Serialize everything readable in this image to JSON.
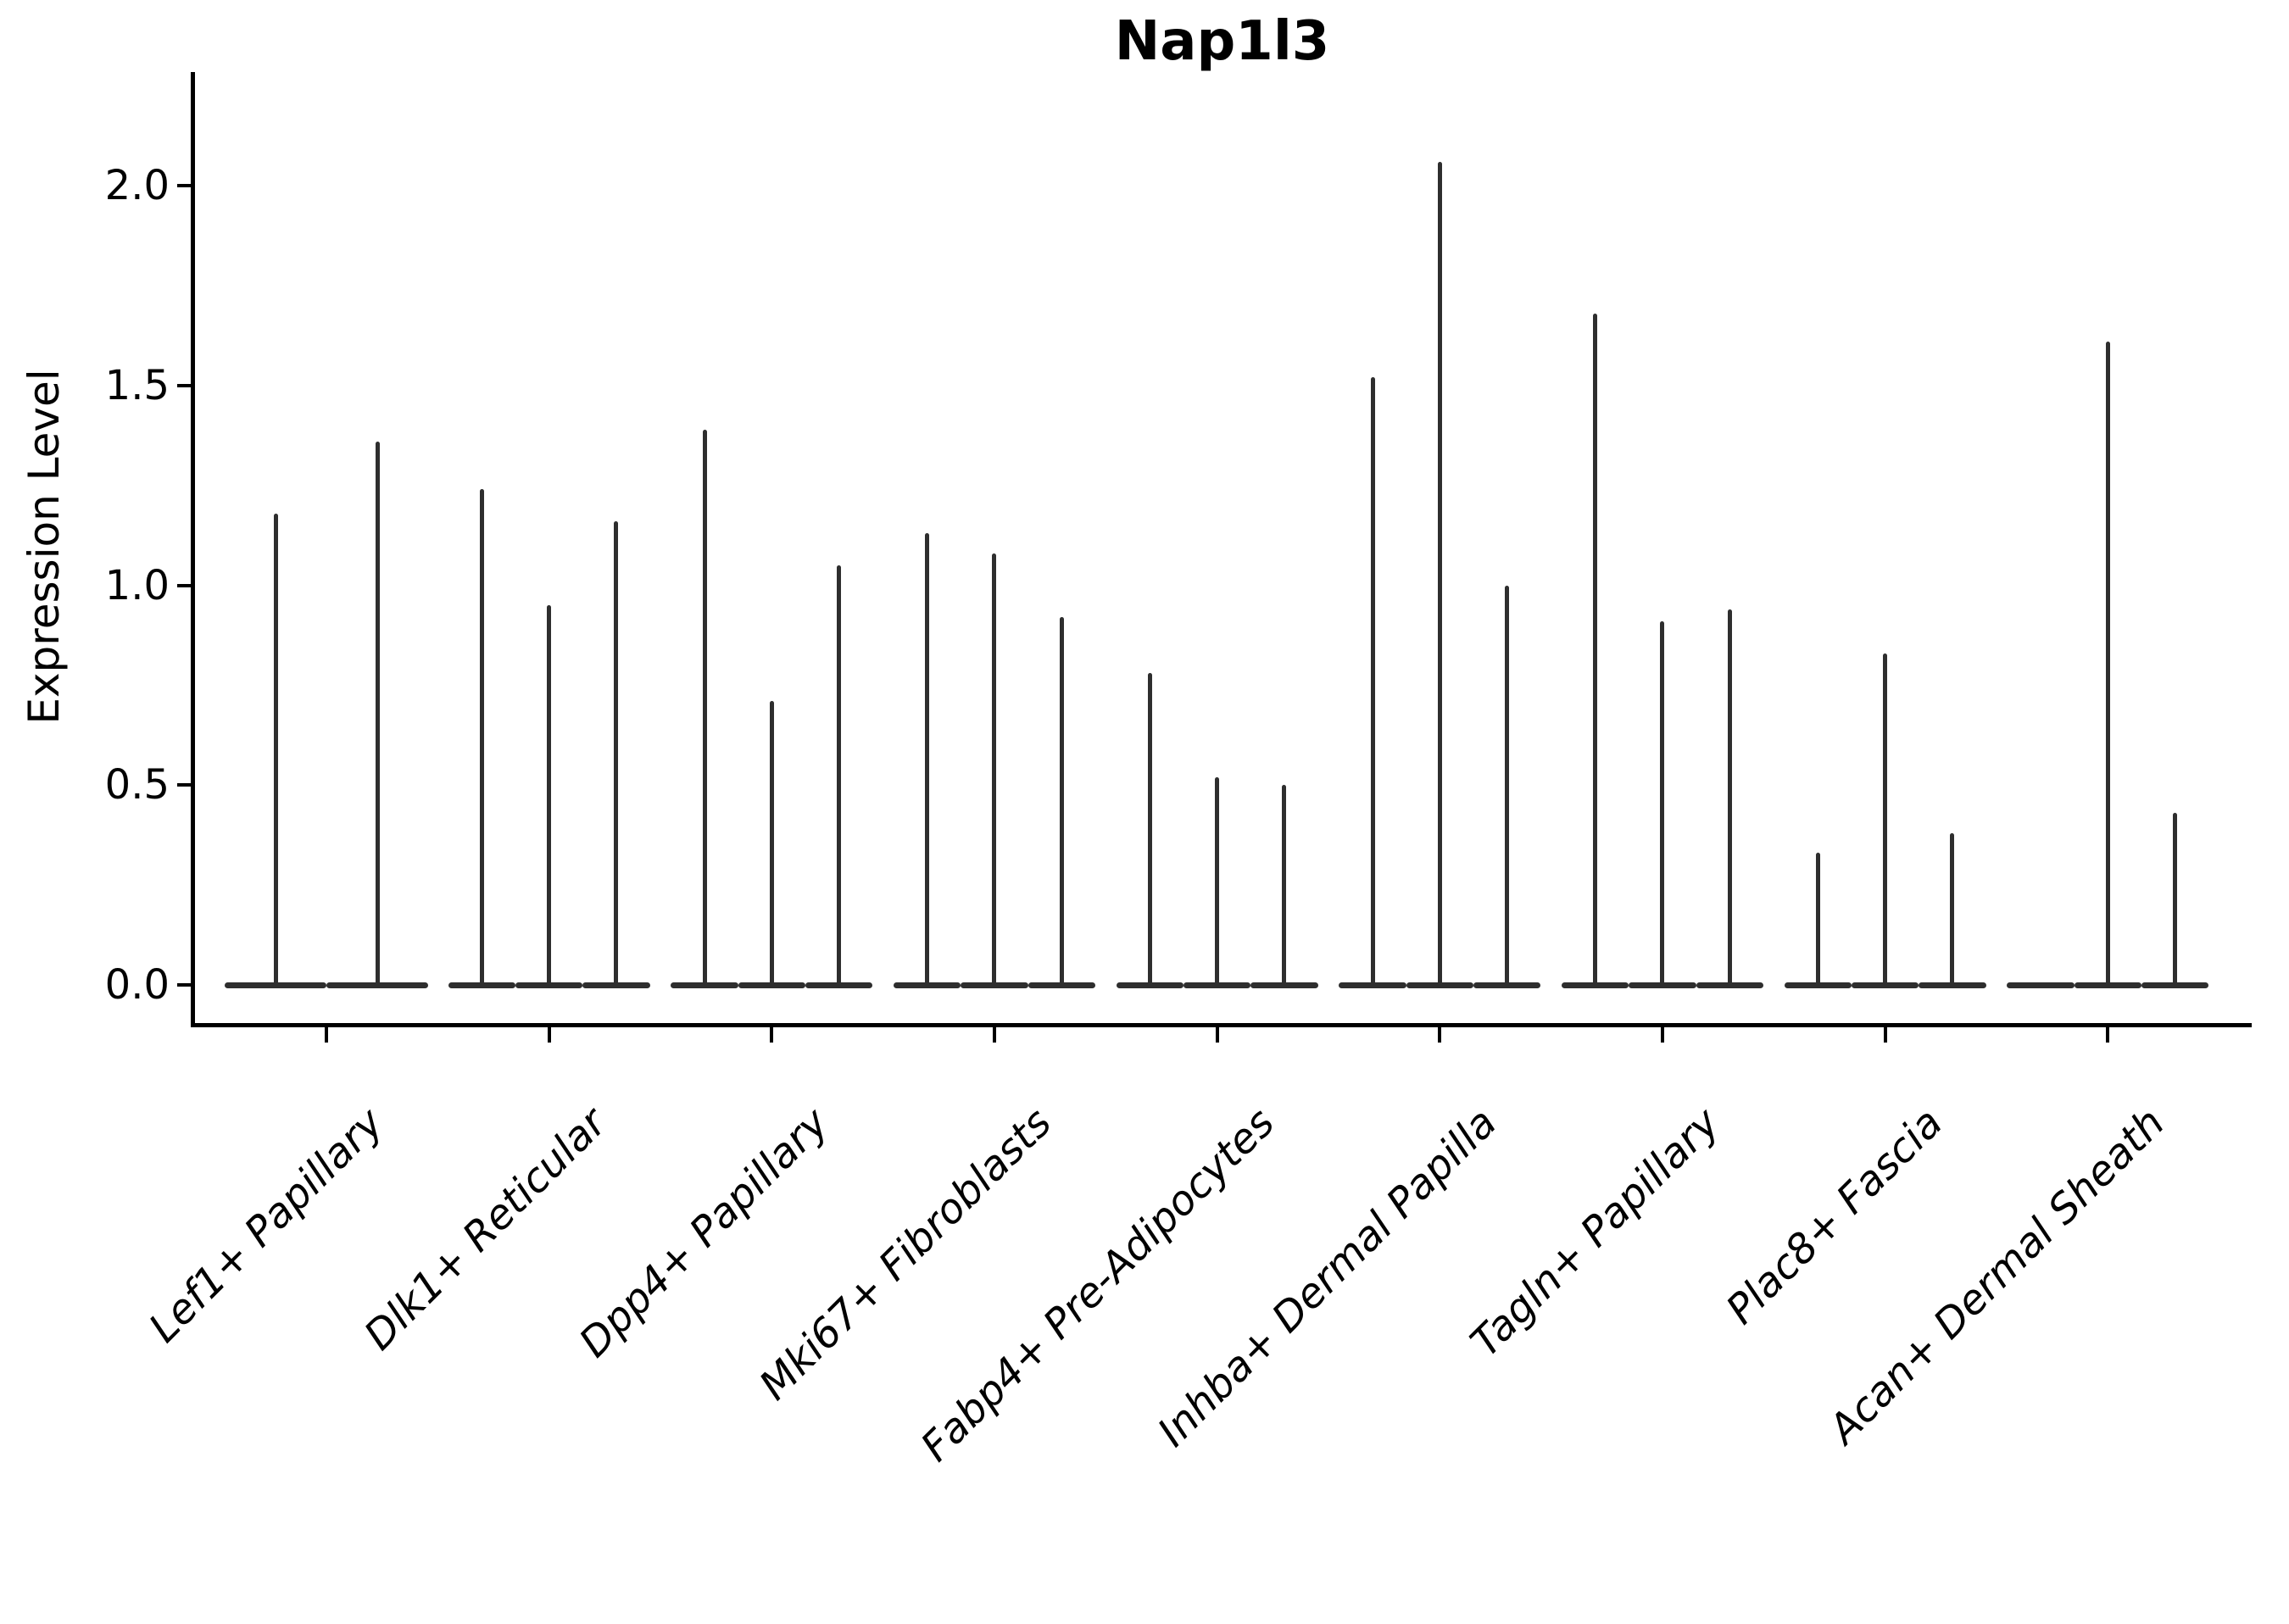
{
  "title": "Nap1l3",
  "chart_data": {
    "type": "violin",
    "title": "Nap1l3",
    "xlabel": "",
    "ylabel": "Expression Level",
    "ylim": [
      -0.1,
      2.28
    ],
    "grid": false,
    "legend": "none",
    "style": "collapsed violins: wide flat body at 0 expression with a thin spike reaching the max expression value",
    "violin_color": "#2e2e2e",
    "axis_color": "#000000",
    "yticks": [
      {
        "value": 0.0,
        "label": "0.0"
      },
      {
        "value": 0.5,
        "label": "0.5"
      },
      {
        "value": 1.0,
        "label": "1.0"
      },
      {
        "value": 1.5,
        "label": "1.5"
      },
      {
        "value": 2.0,
        "label": "2.0"
      }
    ],
    "categories": [
      "Lef1+ Papillary",
      "Dlk1+ Reticular",
      "Dpp4+ Papillary",
      "Mki67+ Fibroblasts",
      "Fabp4+ Pre-Adipocytes",
      "Inhba+ Dermal Papilla",
      "Tagln+ Papillary",
      "Plac8+ Fascia",
      "Acan+ Dermal Sheath"
    ],
    "groups": [
      {
        "label": "Lef1+ Papillary",
        "violins": [
          {
            "dx": -60,
            "width": 120,
            "max": 1.18
          },
          {
            "dx": 60,
            "width": 120,
            "max": 1.36
          }
        ]
      },
      {
        "label": "Dlk1+ Reticular",
        "violins": [
          {
            "dx": -79.3,
            "width": 79.3,
            "max": 1.24
          },
          {
            "dx": 0,
            "width": 79.3,
            "max": 0.95
          },
          {
            "dx": 79.3,
            "width": 79.3,
            "max": 1.16
          }
        ]
      },
      {
        "label": "Dpp4+ Papillary",
        "violins": [
          {
            "dx": -79.3,
            "width": 79.3,
            "max": 1.39
          },
          {
            "dx": 0,
            "width": 79.3,
            "max": 0.71
          },
          {
            "dx": 79.3,
            "width": 79.3,
            "max": 1.05
          }
        ]
      },
      {
        "label": "Mki67+ Fibroblasts",
        "violins": [
          {
            "dx": -79.3,
            "width": 79.3,
            "max": 1.13
          },
          {
            "dx": 0,
            "width": 79.3,
            "max": 1.08
          },
          {
            "dx": 79.3,
            "width": 79.3,
            "max": 0.92
          }
        ]
      },
      {
        "label": "Fabp4+ Pre-Adipocytes",
        "violins": [
          {
            "dx": -79.3,
            "width": 79.3,
            "max": 0.78
          },
          {
            "dx": 0,
            "width": 79.3,
            "max": 0.52
          },
          {
            "dx": 79.3,
            "width": 79.3,
            "max": 0.5
          }
        ]
      },
      {
        "label": "Inhba+ Dermal Papilla",
        "violins": [
          {
            "dx": -79.3,
            "width": 79.3,
            "max": 1.52
          },
          {
            "dx": 0,
            "width": 79.3,
            "max": 2.06
          },
          {
            "dx": 79.3,
            "width": 79.3,
            "max": 1.0
          }
        ]
      },
      {
        "label": "Tagln+ Papillary",
        "violins": [
          {
            "dx": -79.3,
            "width": 79.3,
            "max": 1.68
          },
          {
            "dx": 0,
            "width": 79.3,
            "max": 0.91
          },
          {
            "dx": 79.3,
            "width": 79.3,
            "max": 0.94
          }
        ]
      },
      {
        "label": "Plac8+ Fascia",
        "violins": [
          {
            "dx": -79.3,
            "width": 79.3,
            "max": 0.33
          },
          {
            "dx": 0,
            "width": 79.3,
            "max": 0.83
          },
          {
            "dx": 79.3,
            "width": 79.3,
            "max": 0.38
          }
        ]
      },
      {
        "label": "Acan+ Dermal Sheath",
        "violins": [
          {
            "dx": -79.3,
            "width": 79.3,
            "max": 0.0
          },
          {
            "dx": 0,
            "width": 79.3,
            "max": 1.61
          },
          {
            "dx": 79.3,
            "width": 79.3,
            "max": 0.43
          }
        ]
      }
    ]
  }
}
